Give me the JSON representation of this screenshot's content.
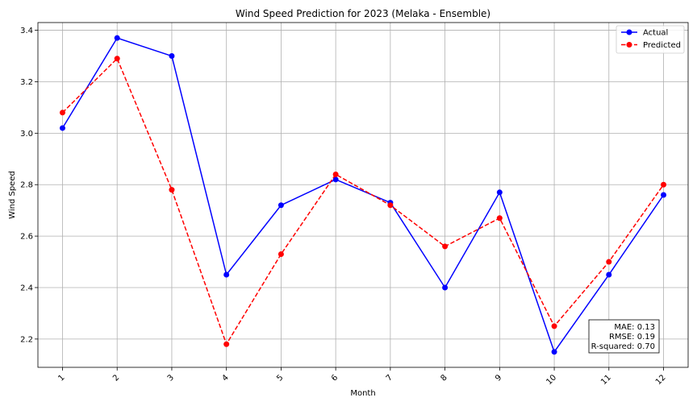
{
  "chart_data": {
    "type": "line",
    "title": "Wind Speed Prediction for 2023 (Melaka - Ensemble)",
    "xlabel": "Month",
    "ylabel": "Wind Speed",
    "categories": [
      "1",
      "2",
      "3",
      "4",
      "5",
      "6",
      "7",
      "8",
      "9",
      "10",
      "11",
      "12"
    ],
    "x": [
      1,
      2,
      3,
      4,
      5,
      6,
      7,
      8,
      9,
      10,
      11,
      12
    ],
    "ylim": [
      2.09,
      3.43
    ],
    "yticks": [
      "2.2",
      "2.4",
      "2.6",
      "2.8",
      "3.0",
      "3.2",
      "3.4"
    ],
    "ytick_values": [
      2.2,
      2.4,
      2.6,
      2.8,
      3.0,
      3.2,
      3.4
    ],
    "grid": true,
    "legend_position": "top-right",
    "series": [
      {
        "name": "Actual",
        "color": "#0000ff",
        "style": "solid",
        "values": [
          3.02,
          3.37,
          3.3,
          2.45,
          2.72,
          2.82,
          2.73,
          2.4,
          2.77,
          2.15,
          2.45,
          2.76
        ]
      },
      {
        "name": "Predicted",
        "color": "#ff0000",
        "style": "dashed",
        "values": [
          3.08,
          3.29,
          2.78,
          2.18,
          2.53,
          2.84,
          2.72,
          2.56,
          2.67,
          2.25,
          2.5,
          2.8
        ]
      }
    ],
    "annotations": [
      "MAE: 0.13",
      "RMSE: 0.19",
      "R-squared: 0.70"
    ]
  }
}
